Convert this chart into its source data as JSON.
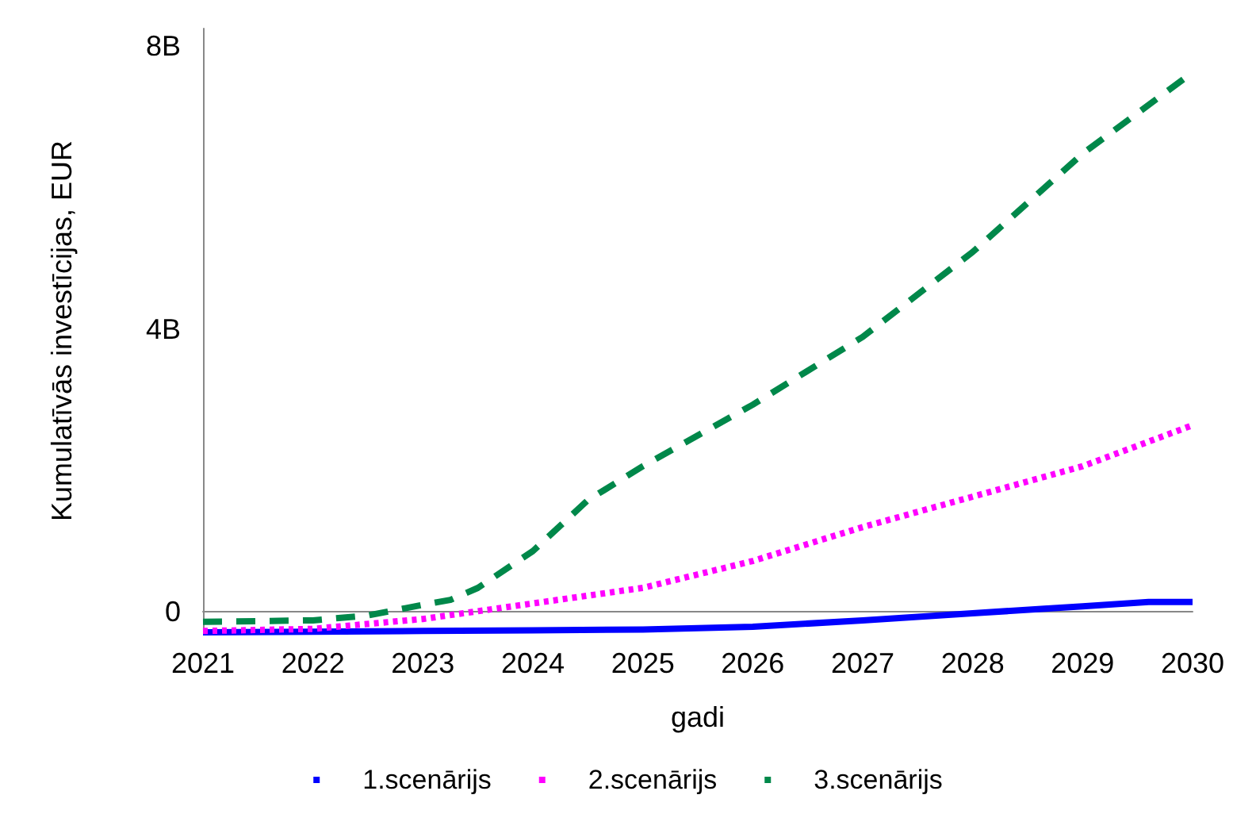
{
  "chart_data": {
    "type": "line",
    "xlabel": "gadi",
    "ylabel": "Kumulatīvās investīcijas, EUR",
    "xlim": [
      2021,
      2030
    ],
    "xticks": [
      2021,
      2022,
      2023,
      2024,
      2025,
      2026,
      2027,
      2028,
      2029,
      2030
    ],
    "ylim": [
      -0.3,
      8.25
    ],
    "yticks": [
      0,
      {
        "value": 4,
        "label": "4B"
      },
      {
        "value": 8,
        "label": "8B"
      }
    ],
    "grid": false,
    "legend": "bottom",
    "marker": "none",
    "series": [
      {
        "name": "1.scenārijs",
        "color": "#0000ff",
        "line_style": "solid",
        "x": [
          2021,
          2022,
          2023,
          2024,
          2025,
          2026,
          2027,
          2028,
          2029,
          2029.6,
          2030
        ],
        "values": [
          -0.29,
          -0.28,
          -0.27,
          -0.26,
          -0.25,
          -0.21,
          -0.12,
          -0.02,
          0.08,
          0.14,
          0.14
        ]
      },
      {
        "name": "2.scenārijs",
        "color": "#ff00ff",
        "line_style": "dotted",
        "x": [
          2021,
          2022,
          2023,
          2024,
          2025,
          2026,
          2027,
          2028,
          2029,
          2030
        ],
        "values": [
          -0.27,
          -0.24,
          -0.1,
          0.12,
          0.34,
          0.72,
          1.2,
          1.63,
          2.06,
          2.64
        ]
      },
      {
        "name": "3.scenārijs",
        "color": "#00884a",
        "line_style": "dashed",
        "x": [
          2021,
          2022,
          2022.5,
          2023,
          2023.25,
          2023.5,
          2024,
          2024.5,
          2025,
          2026,
          2027,
          2028,
          2029,
          2030
        ],
        "values": [
          -0.14,
          -0.12,
          -0.05,
          0.1,
          0.17,
          0.34,
          0.86,
          1.58,
          2.06,
          2.93,
          3.89,
          5.09,
          6.48,
          7.63
        ]
      }
    ]
  }
}
